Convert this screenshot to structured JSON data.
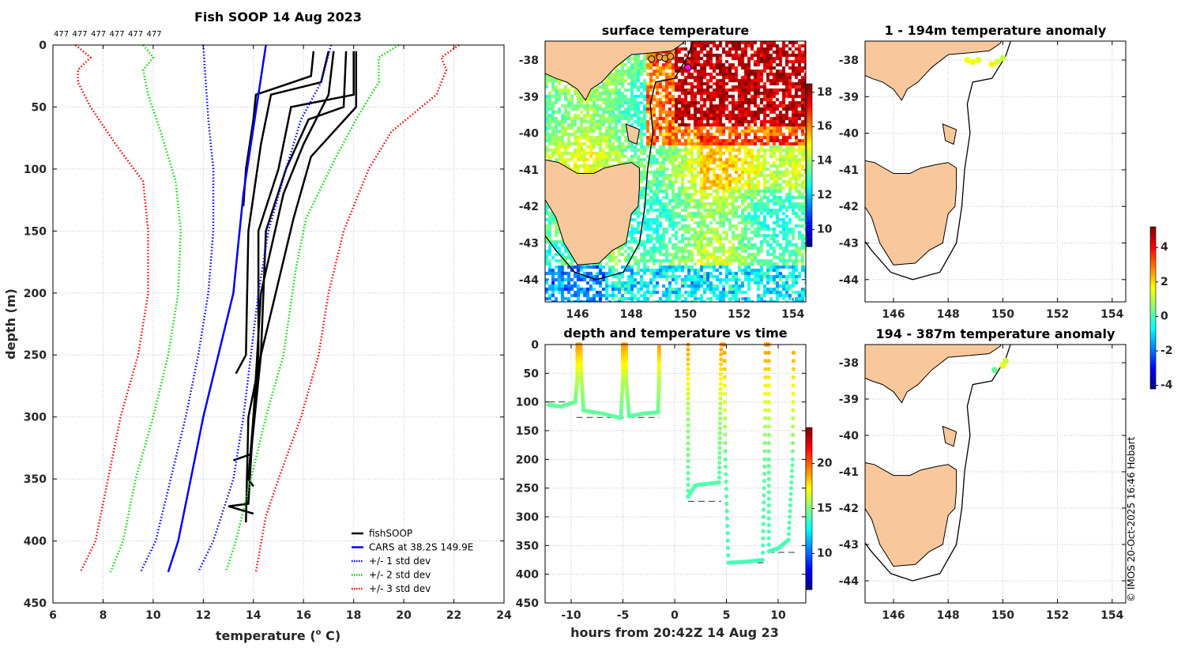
{
  "colors": {
    "land": "#f8c89c",
    "coast": "#000000",
    "grid": "#b9bfe0",
    "red": "#ff0000",
    "green": "#00dd00",
    "blue": "#0000ff",
    "black": "#000000"
  },
  "copyright": "© IMOS 20-Oct-2025 16:46 Hobart",
  "chart_data": [
    {
      "id": "profile",
      "type": "line",
      "title": "Fish SOOP 14 Aug 2023",
      "top_labels": [
        "477",
        "477",
        "477",
        "477",
        "477",
        "477"
      ],
      "xlabel": "temperature (",
      "xlabel_sup": "o",
      "xlabel_end": " C)",
      "ylabel": "depth (m)",
      "xlim": [
        6,
        24
      ],
      "ylim": [
        450,
        0
      ],
      "xticks": [
        "6",
        "8",
        "10",
        "12",
        "14",
        "16",
        "18",
        "20",
        "22",
        "24"
      ],
      "yticks": [
        "0",
        "50",
        "100",
        "150",
        "200",
        "250",
        "300",
        "350",
        "400",
        "450"
      ],
      "grid": true,
      "legend_position": "bottom-right",
      "legend": [
        "fishSOOP",
        "CARS at 38.2S 149.9E",
        "+/- 1 std dev",
        "+/- 2 std dev",
        "+/- 3 std dev"
      ],
      "series": [
        {
          "name": "fishSOOP",
          "style": "solid",
          "color": "#000000",
          "profiles": [
            [
              [
                16.4,
                5
              ],
              [
                16.3,
                25
              ],
              [
                14.1,
                40
              ],
              [
                14.0,
                60
              ],
              [
                13.7,
                100
              ],
              [
                13.6,
                130
              ]
            ],
            [
              [
                17.0,
                5
              ],
              [
                16.7,
                30
              ],
              [
                14.7,
                40
              ],
              [
                14.3,
                80
              ],
              [
                13.8,
                150
              ],
              [
                13.7,
                250
              ],
              [
                13.3,
                265
              ]
            ],
            [
              [
                18.0,
                5
              ],
              [
                18.0,
                40
              ],
              [
                15.5,
                50
              ],
              [
                15.0,
                100
              ],
              [
                14.2,
                150
              ],
              [
                14.2,
                250
              ],
              [
                14.0,
                300
              ],
              [
                13.8,
                350
              ],
              [
                14.0,
                356
              ]
            ],
            [
              [
                17.7,
                5
              ],
              [
                17.6,
                50
              ],
              [
                16.2,
                60
              ],
              [
                15.3,
                100
              ],
              [
                14.5,
                150
              ],
              [
                14.3,
                250
              ],
              [
                13.9,
                330
              ],
              [
                13.2,
                335
              ]
            ],
            [
              [
                17.2,
                5
              ],
              [
                17.0,
                40
              ],
              [
                16.5,
                60
              ],
              [
                16.0,
                80
              ],
              [
                15.2,
                120
              ],
              [
                14.3,
                200
              ],
              [
                14.0,
                300
              ],
              [
                13.8,
                370
              ],
              [
                13.0,
                372
              ],
              [
                14.0,
                378
              ]
            ],
            [
              [
                18.1,
                5
              ],
              [
                18.1,
                50
              ],
              [
                16.3,
                90
              ],
              [
                15.6,
                140
              ],
              [
                14.3,
                250
              ],
              [
                13.8,
                300
              ],
              [
                13.7,
                385
              ]
            ]
          ]
        },
        {
          "name": "CARS at 38.2S 149.9E",
          "style": "solid",
          "color": "#0000ff",
          "points": [
            [
              14.5,
              0
            ],
            [
              14.2,
              40
            ],
            [
              13.9,
              80
            ],
            [
              13.6,
              120
            ],
            [
              13.4,
              160
            ],
            [
              13.2,
              200
            ],
            [
              12.6,
              250
            ],
            [
              12.0,
              300
            ],
            [
              11.5,
              350
            ],
            [
              11.0,
              400
            ],
            [
              10.6,
              425
            ]
          ]
        },
        {
          "name": "+/- 1 std dev",
          "style": "dotted",
          "color": "#0000ff",
          "lines": [
            [
              [
                12.0,
                0
              ],
              [
                12.1,
                30
              ],
              [
                12.2,
                60
              ],
              [
                12.4,
                100
              ],
              [
                12.4,
                150
              ],
              [
                12.2,
                200
              ],
              [
                11.8,
                250
              ],
              [
                11.3,
                300
              ],
              [
                10.7,
                350
              ],
              [
                10.1,
                400
              ],
              [
                9.5,
                425
              ]
            ],
            [
              [
                17.1,
                0
              ],
              [
                16.7,
                30
              ],
              [
                15.9,
                60
              ],
              [
                15.3,
                100
              ],
              [
                14.6,
                150
              ],
              [
                14.2,
                200
              ],
              [
                13.9,
                250
              ],
              [
                13.6,
                300
              ],
              [
                13.2,
                350
              ],
              [
                12.4,
                400
              ],
              [
                11.8,
                425
              ]
            ]
          ]
        },
        {
          "name": "+/- 2 std dev",
          "style": "dotted",
          "color": "#00dd00",
          "lines": [
            [
              [
                9.6,
                0
              ],
              [
                10.0,
                10
              ],
              [
                9.6,
                20
              ],
              [
                9.8,
                40
              ],
              [
                10.3,
                70
              ],
              [
                10.9,
                110
              ],
              [
                11.1,
                150
              ],
              [
                11.0,
                200
              ],
              [
                10.6,
                250
              ],
              [
                10.0,
                300
              ],
              [
                9.3,
                350
              ],
              [
                8.8,
                400
              ],
              [
                8.3,
                425
              ]
            ],
            [
              [
                19.8,
                0
              ],
              [
                19.0,
                10
              ],
              [
                19.0,
                30
              ],
              [
                18.1,
                60
              ],
              [
                17.3,
                90
              ],
              [
                16.1,
                140
              ],
              [
                15.7,
                180
              ],
              [
                15.2,
                250
              ],
              [
                14.5,
                300
              ],
              [
                13.9,
                350
              ],
              [
                13.3,
                400
              ],
              [
                12.9,
                425
              ]
            ]
          ]
        },
        {
          "name": "+/- 3 std dev",
          "style": "dotted",
          "color": "#ff0000",
          "lines": [
            [
              [
                6.9,
                0
              ],
              [
                7.5,
                10
              ],
              [
                7.0,
                20
              ],
              [
                7.0,
                30
              ],
              [
                7.5,
                50
              ],
              [
                8.5,
                80
              ],
              [
                9.6,
                110
              ],
              [
                9.8,
                150
              ],
              [
                9.8,
                200
              ],
              [
                9.4,
                250
              ],
              [
                8.7,
                300
              ],
              [
                8.2,
                350
              ],
              [
                7.7,
                400
              ],
              [
                7.1,
                425
              ]
            ],
            [
              [
                22.2,
                0
              ],
              [
                21.5,
                10
              ],
              [
                21.7,
                20
              ],
              [
                21.3,
                40
              ],
              [
                19.5,
                70
              ],
              [
                18.6,
                100
              ],
              [
                17.6,
                150
              ],
              [
                17.0,
                200
              ],
              [
                16.6,
                250
              ],
              [
                15.9,
                300
              ],
              [
                15.0,
                350
              ],
              [
                14.5,
                380
              ],
              [
                14.1,
                425
              ]
            ]
          ]
        }
      ]
    },
    {
      "id": "sst_map",
      "type": "heatmap",
      "title": "surface temperature",
      "xlim": [
        144.8,
        154.5
      ],
      "ylim": [
        -44.6,
        -37.5
      ],
      "xticks": [
        "146",
        "148",
        "150",
        "152",
        "154"
      ],
      "yticks": [
        "-38",
        "-39",
        "-40",
        "-41",
        "-42",
        "-43",
        "-44"
      ],
      "colorbar": {
        "range": [
          9,
          18.5
        ],
        "ticks": [
          "10",
          "12",
          "14",
          "16",
          "18"
        ]
      },
      "track_points": [
        [
          148.75,
          -37.97
        ],
        [
          149.05,
          -37.92
        ],
        [
          149.25,
          -37.95
        ],
        [
          149.45,
          -37.9
        ],
        [
          150.1,
          -38.2
        ]
      ]
    },
    {
      "id": "depth_time",
      "type": "scatter",
      "title": "depth and temperature vs time",
      "xlabel": "hours from 20:42Z 14 Aug 23",
      "xlim": [
        -12.6,
        12.6
      ],
      "ylim": [
        450,
        0
      ],
      "xticks": [
        "-10",
        "-5",
        "0",
        "5",
        "10"
      ],
      "yticks": [
        "0",
        "50",
        "100",
        "150",
        "200",
        "250",
        "300",
        "350",
        "400",
        "450"
      ],
      "colorbar": {
        "range": [
          6,
          24
        ],
        "ticks": [
          "10",
          "15",
          "20"
        ]
      },
      "track": [
        [
          [
            -12.2,
            105,
            14.5
          ],
          [
            -11,
            108,
            14.5
          ],
          [
            -9.6,
            100,
            14.6
          ],
          [
            -9.4,
            60,
            16
          ],
          [
            -9.4,
            0,
            19
          ],
          [
            -9.1,
            0,
            19
          ],
          [
            -9.0,
            60,
            16
          ],
          [
            -8.8,
            115,
            14.6
          ],
          [
            -7,
            120,
            14.5
          ],
          [
            -5.2,
            128,
            14.4
          ],
          [
            -5.0,
            60,
            16
          ],
          [
            -5.0,
            0,
            19
          ],
          [
            -4.7,
            0,
            19
          ],
          [
            -4.7,
            60,
            16
          ],
          [
            -4.4,
            125,
            14.4
          ],
          [
            -3,
            120,
            14.4
          ],
          [
            -1.6,
            118,
            14.5
          ],
          [
            -1.5,
            60,
            16
          ],
          [
            -1.5,
            0,
            19
          ]
        ],
        [
          [
            1.3,
            0,
            19
          ],
          [
            1.3,
            120,
            15.5
          ],
          [
            1.3,
            265,
            14.2
          ],
          [
            2.0,
            245,
            14.2
          ],
          [
            4.3,
            240,
            14.2
          ],
          [
            4.4,
            120,
            15.5
          ],
          [
            4.5,
            0,
            19
          ],
          [
            4.8,
            0,
            19
          ],
          [
            4.9,
            200,
            14.5
          ],
          [
            5.2,
            380,
            14
          ],
          [
            7,
            378,
            14
          ],
          [
            8.5,
            375,
            14
          ],
          [
            8.7,
            200,
            14.5
          ],
          [
            8.8,
            0,
            19
          ],
          [
            9.1,
            0,
            19
          ],
          [
            9.1,
            200,
            14.5
          ],
          [
            9.1,
            360,
            14
          ],
          [
            10,
            355,
            14
          ],
          [
            11,
            340,
            14.1
          ],
          [
            11.4,
            200,
            14.5
          ],
          [
            11.5,
            0,
            19
          ]
        ]
      ],
      "bottom_depths": [
        [
          -12.2,
          -9.5,
          100
        ],
        [
          -9.5,
          -1.5,
          127
        ],
        [
          1.3,
          4.5,
          273
        ],
        [
          5.0,
          9.0,
          380
        ],
        [
          9.0,
          12.0,
          362
        ]
      ]
    },
    {
      "id": "anom_shallow",
      "type": "scatter",
      "title": "1 - 194m temperature anomaly",
      "xticks": [
        "146",
        "148",
        "150",
        "152",
        "154"
      ],
      "yticks": [
        "-38",
        "-39",
        "-40",
        "-41",
        "-42",
        "-43",
        "-44"
      ],
      "points": [
        [
          148.7,
          -38.0,
          1.6
        ],
        [
          148.9,
          -38.05,
          1.5
        ],
        [
          149.1,
          -38.0,
          1.4
        ],
        [
          149.6,
          -38.12,
          1.8
        ],
        [
          149.8,
          -38.05,
          1.3
        ],
        [
          150.0,
          -37.95,
          1.1
        ]
      ]
    },
    {
      "id": "anom_deep",
      "type": "scatter",
      "title": "194 - 387m temperature anomaly",
      "xticks": [
        "146",
        "148",
        "150",
        "152",
        "154"
      ],
      "yticks": [
        "-38",
        "-39",
        "-40",
        "-41",
        "-42",
        "-43",
        "-44"
      ],
      "points": [
        [
          149.7,
          -38.2,
          0.3
        ],
        [
          150.0,
          -38.08,
          1.5
        ],
        [
          150.1,
          -37.95,
          1.2
        ]
      ],
      "colorbar": {
        "range": [
          -4.2,
          5.2
        ],
        "ticks": [
          "4",
          "2",
          "0",
          "-2",
          "-4"
        ]
      }
    }
  ]
}
